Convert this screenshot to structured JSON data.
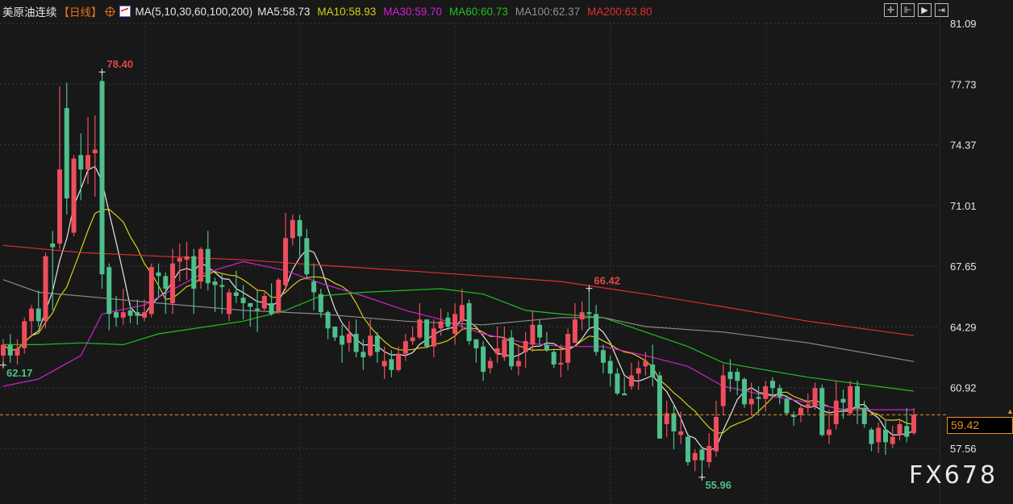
{
  "header": {
    "instrument": "美原油连续",
    "period": "【日线】",
    "indicator": "MA(5,10,30,60,100,200)",
    "ma_values": [
      {
        "label": "MA5:58.73",
        "color": "#e6e6e6"
      },
      {
        "label": "MA10:58.93",
        "color": "#d8d010"
      },
      {
        "label": "MA30:59.70",
        "color": "#d020d0"
      },
      {
        "label": "MA60:60.73",
        "color": "#20c020"
      },
      {
        "label": "MA100:62.37",
        "color": "#909090"
      },
      {
        "label": "MA200:63.80",
        "color": "#e03030"
      }
    ]
  },
  "toolbar": {
    "icons": [
      "crosshair-icon",
      "zoom-range-icon",
      "play-forward-icon",
      "exit-icon"
    ],
    "glyphs": [
      "✛",
      "⊩",
      "▶",
      "⇥"
    ]
  },
  "current_price": "59.42",
  "watermark": "FX678",
  "colors": {
    "up": "#ee4e5c",
    "down": "#4fbf8c",
    "price_line": "#e8912a",
    "background": "#181818"
  },
  "chart_data": {
    "type": "candlestick",
    "ylim": [
      57.56,
      81.09
    ],
    "yticks": [
      "81.09",
      "77.73",
      "74.37",
      "71.01",
      "67.65",
      "64.29",
      "60.92",
      "57.56"
    ],
    "grid": true,
    "annotations": [
      {
        "text": "78.40",
        "index": 14,
        "at": "high",
        "color": "#e04848"
      },
      {
        "text": "62.17",
        "index": 0,
        "at": "low",
        "color": "#4fbf8c"
      },
      {
        "text": "66.42",
        "index": 83,
        "at": "high",
        "color": "#e04848"
      },
      {
        "text": "55.96",
        "index": 99,
        "at": "low",
        "color": "#4fbf8c"
      }
    ],
    "ohlc": [
      [
        62.7,
        63.6,
        62.17,
        63.3
      ],
      [
        63.3,
        63.9,
        62.3,
        62.7
      ],
      [
        62.7,
        63.6,
        62.2,
        63.1
      ],
      [
        63.1,
        64.8,
        62.8,
        64.6
      ],
      [
        64.6,
        65.5,
        63.7,
        65.3
      ],
      [
        65.3,
        66.3,
        64.3,
        64.6
      ],
      [
        64.6,
        68.4,
        64.2,
        68.2
      ],
      [
        68.9,
        69.6,
        65.2,
        68.7
      ],
      [
        68.9,
        77.6,
        68.6,
        73.0
      ],
      [
        76.4,
        77.8,
        70.5,
        71.4
      ],
      [
        69.5,
        73.8,
        69.3,
        73.6
      ],
      [
        73.8,
        75.0,
        71.3,
        73.0
      ],
      [
        73.0,
        75.9,
        72.2,
        73.8
      ],
      [
        73.9,
        76.0,
        71.5,
        74.1
      ],
      [
        77.9,
        78.4,
        66.4,
        67.2
      ],
      [
        67.6,
        67.8,
        64.1,
        65.0
      ],
      [
        65.1,
        66.0,
        64.3,
        64.8
      ],
      [
        64.8,
        66.4,
        64.4,
        65.1
      ],
      [
        65.2,
        65.6,
        64.5,
        64.9
      ],
      [
        65.1,
        65.8,
        64.4,
        64.9
      ],
      [
        64.8,
        65.8,
        64.6,
        65.1
      ],
      [
        65.0,
        67.8,
        64.8,
        67.6
      ],
      [
        67.3,
        67.8,
        65.9,
        67.1
      ],
      [
        67.1,
        67.3,
        65.0,
        66.4
      ],
      [
        65.6,
        68.6,
        65.0,
        67.8
      ],
      [
        67.9,
        68.9,
        66.8,
        68.1
      ],
      [
        68.0,
        69.0,
        66.9,
        68.2
      ],
      [
        68.2,
        68.6,
        65.0,
        66.4
      ],
      [
        66.8,
        68.7,
        66.4,
        68.6
      ],
      [
        68.6,
        69.6,
        66.3,
        66.7
      ],
      [
        66.8,
        67.0,
        65.1,
        66.6
      ],
      [
        66.6,
        67.2,
        65.0,
        66.5
      ],
      [
        65.0,
        66.4,
        64.6,
        66.2
      ],
      [
        66.2,
        67.4,
        65.6,
        66.0
      ],
      [
        65.9,
        66.6,
        64.7,
        65.6
      ],
      [
        65.6,
        65.6,
        64.3,
        65.4
      ],
      [
        65.3,
        66.3,
        64.0,
        65.2
      ],
      [
        65.3,
        66.2,
        65.2,
        66.0
      ],
      [
        65.6,
        66.7,
        64.9,
        65.0
      ],
      [
        65.1,
        67.0,
        65.0,
        66.9
      ],
      [
        66.6,
        70.6,
        66.3,
        69.2
      ],
      [
        69.2,
        70.5,
        68.8,
        70.2
      ],
      [
        70.2,
        70.5,
        68.2,
        69.3
      ],
      [
        69.2,
        69.7,
        66.9,
        67.2
      ],
      [
        66.8,
        67.8,
        65.2,
        66.2
      ],
      [
        66.1,
        66.4,
        64.8,
        65.1
      ],
      [
        65.1,
        65.2,
        63.6,
        64.2
      ],
      [
        64.3,
        64.3,
        63.5,
        63.7
      ],
      [
        63.8,
        64.4,
        62.3,
        63.3
      ],
      [
        63.4,
        64.6,
        62.9,
        63.9
      ],
      [
        63.9,
        64.7,
        62.6,
        62.9
      ],
      [
        62.9,
        63.6,
        61.9,
        62.6
      ],
      [
        62.7,
        64.7,
        62.6,
        63.8
      ],
      [
        63.8,
        64.0,
        62.3,
        62.9
      ],
      [
        62.1,
        63.2,
        61.4,
        62.4
      ],
      [
        62.5,
        63.0,
        61.5,
        61.9
      ],
      [
        61.9,
        63.2,
        61.8,
        62.8
      ],
      [
        62.8,
        63.9,
        62.4,
        63.5
      ],
      [
        63.5,
        64.3,
        63.3,
        63.7
      ],
      [
        63.7,
        65.6,
        63.6,
        64.7
      ],
      [
        64.7,
        64.7,
        63.1,
        63.2
      ],
      [
        63.2,
        64.7,
        62.6,
        64.2
      ],
      [
        64.2,
        65.3,
        63.8,
        64.6
      ],
      [
        64.8,
        65.1,
        64.1,
        64.3
      ],
      [
        63.9,
        65.6,
        63.3,
        65.0
      ],
      [
        64.6,
        66.4,
        64.1,
        65.5
      ],
      [
        65.6,
        65.8,
        63.3,
        63.5
      ],
      [
        63.6,
        63.6,
        62.3,
        63.1
      ],
      [
        63.2,
        63.5,
        61.3,
        61.8
      ],
      [
        62.0,
        62.6,
        61.7,
        62.4
      ],
      [
        62.8,
        64.3,
        62.3,
        63.1
      ],
      [
        62.6,
        64.3,
        62.4,
        63.6
      ],
      [
        63.7,
        64.1,
        61.9,
        62.1
      ],
      [
        62.1,
        63.3,
        61.6,
        62.4
      ],
      [
        62.9,
        64.0,
        62.0,
        63.5
      ],
      [
        63.3,
        65.2,
        62.9,
        64.4
      ],
      [
        64.4,
        64.7,
        63.3,
        63.7
      ],
      [
        63.3,
        64.0,
        62.9,
        63.0
      ],
      [
        62.9,
        63.0,
        62.0,
        62.2
      ],
      [
        62.2,
        63.3,
        61.5,
        62.3
      ],
      [
        62.3,
        64.2,
        61.9,
        63.9
      ],
      [
        63.4,
        65.6,
        63.4,
        64.7
      ],
      [
        64.7,
        65.7,
        64.1,
        65.1
      ],
      [
        65.1,
        66.42,
        64.1,
        65.0
      ],
      [
        65.0,
        65.5,
        62.7,
        62.9
      ],
      [
        63.0,
        63.3,
        61.7,
        62.3
      ],
      [
        62.4,
        62.7,
        61.0,
        61.7
      ],
      [
        61.7,
        62.0,
        60.5,
        60.6
      ],
      [
        60.6,
        61.5,
        60.5,
        60.5
      ],
      [
        61.0,
        62.3,
        60.8,
        61.6
      ],
      [
        61.7,
        62.4,
        60.8,
        62.0
      ],
      [
        62.1,
        62.9,
        61.6,
        62.4
      ],
      [
        62.2,
        63.3,
        61.0,
        61.5
      ],
      [
        61.6,
        61.8,
        58.1,
        58.1
      ],
      [
        58.9,
        60.2,
        58.2,
        59.5
      ],
      [
        59.5,
        60.0,
        57.5,
        58.5
      ],
      [
        58.3,
        59.6,
        57.8,
        58.5
      ],
      [
        58.2,
        58.4,
        56.6,
        56.8
      ],
      [
        56.9,
        57.5,
        56.3,
        57.3
      ],
      [
        57.5,
        57.6,
        55.96,
        56.9
      ],
      [
        56.8,
        58.4,
        56.5,
        57.7
      ],
      [
        57.4,
        60.2,
        57.1,
        59.3
      ],
      [
        59.9,
        62.2,
        59.4,
        61.6
      ],
      [
        61.8,
        62.5,
        60.7,
        61.4
      ],
      [
        61.8,
        62.0,
        60.5,
        61.3
      ],
      [
        61.4,
        61.5,
        59.8,
        60.0
      ],
      [
        60.0,
        61.2,
        59.4,
        60.3
      ],
      [
        60.4,
        61.0,
        59.5,
        60.3
      ],
      [
        60.3,
        61.3,
        59.6,
        61.0
      ],
      [
        61.3,
        61.5,
        60.4,
        60.9
      ],
      [
        60.9,
        61.1,
        60.0,
        60.4
      ],
      [
        60.3,
        60.5,
        59.4,
        59.5
      ],
      [
        59.4,
        59.6,
        58.8,
        59.3
      ],
      [
        59.4,
        60.0,
        59.0,
        59.8
      ],
      [
        59.8,
        60.6,
        59.5,
        60.0
      ],
      [
        59.9,
        61.2,
        59.7,
        60.9
      ],
      [
        60.9,
        61.1,
        58.2,
        58.3
      ],
      [
        58.3,
        59.7,
        57.8,
        58.6
      ],
      [
        58.9,
        61.3,
        58.6,
        60.2
      ],
      [
        60.3,
        60.8,
        59.2,
        60.1
      ],
      [
        59.5,
        61.3,
        59.4,
        61.0
      ],
      [
        61.0,
        61.3,
        58.9,
        59.8
      ],
      [
        59.8,
        60.2,
        58.7,
        58.9
      ],
      [
        58.6,
        58.7,
        57.4,
        57.8
      ],
      [
        57.9,
        59.0,
        57.3,
        58.7
      ],
      [
        58.6,
        59.1,
        57.2,
        57.9
      ],
      [
        57.8,
        58.8,
        57.6,
        58.2
      ],
      [
        58.3,
        59.2,
        58.0,
        58.9
      ],
      [
        58.8,
        59.8,
        57.9,
        58.2
      ],
      [
        58.4,
        59.8,
        58.3,
        59.42
      ]
    ],
    "ma_lines": [
      {
        "name": "MA5",
        "period": 5,
        "color": "#e6e6e6"
      },
      {
        "name": "MA10",
        "period": 10,
        "color": "#d8d010"
      },
      {
        "name": "MA30",
        "color": "#d020d0",
        "points": [
          [
            0,
            61.0
          ],
          [
            5,
            61.4
          ],
          [
            11,
            62.7
          ],
          [
            14,
            65.0
          ],
          [
            20,
            65.5
          ],
          [
            28,
            67.2
          ],
          [
            34,
            67.9
          ],
          [
            40,
            67.4
          ],
          [
            45,
            66.7
          ],
          [
            51,
            66.0
          ],
          [
            57,
            65.2
          ],
          [
            62,
            64.7
          ],
          [
            68,
            63.9
          ],
          [
            74,
            63.4
          ],
          [
            79,
            63.2
          ],
          [
            85,
            63.2
          ],
          [
            91,
            62.7
          ],
          [
            97,
            62.1
          ],
          [
            102,
            61.0
          ],
          [
            108,
            60.5
          ],
          [
            114,
            60.1
          ],
          [
            119,
            59.7
          ],
          [
            129,
            59.7
          ]
        ]
      },
      {
        "name": "MA60",
        "color": "#20c020",
        "points": [
          [
            0,
            63.3
          ],
          [
            5,
            63.3
          ],
          [
            11,
            63.4
          ],
          [
            17,
            63.3
          ],
          [
            22,
            63.9
          ],
          [
            34,
            64.6
          ],
          [
            40,
            65.2
          ],
          [
            45,
            66.0
          ],
          [
            51,
            66.2
          ],
          [
            62,
            66.4
          ],
          [
            68,
            66.1
          ],
          [
            74,
            65.2
          ],
          [
            79,
            65.0
          ],
          [
            85,
            64.8
          ],
          [
            91,
            64.0
          ],
          [
            97,
            63.2
          ],
          [
            102,
            62.3
          ],
          [
            114,
            61.5
          ],
          [
            129,
            60.73
          ]
        ]
      },
      {
        "name": "MA100",
        "color": "#8a8a8a",
        "points": [
          [
            0,
            66.9
          ],
          [
            5,
            66.2
          ],
          [
            11,
            66.0
          ],
          [
            22,
            65.6
          ],
          [
            34,
            65.2
          ],
          [
            45,
            65.0
          ],
          [
            57,
            64.6
          ],
          [
            68,
            64.4
          ],
          [
            79,
            64.8
          ],
          [
            85,
            64.8
          ],
          [
            91,
            64.3
          ],
          [
            102,
            64.0
          ],
          [
            114,
            63.4
          ],
          [
            129,
            62.37
          ]
        ]
      },
      {
        "name": "MA200",
        "color": "#e03030",
        "points": [
          [
            0,
            68.8
          ],
          [
            11,
            68.4
          ],
          [
            22,
            68.2
          ],
          [
            34,
            68.0
          ],
          [
            45,
            67.7
          ],
          [
            57,
            67.4
          ],
          [
            68,
            67.1
          ],
          [
            79,
            66.8
          ],
          [
            91,
            66.1
          ],
          [
            102,
            65.4
          ],
          [
            114,
            64.6
          ],
          [
            129,
            63.8
          ]
        ]
      }
    ]
  }
}
